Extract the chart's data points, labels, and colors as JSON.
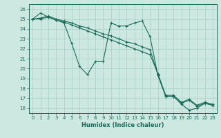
{
  "xlabel": "Humidex (Indice chaleur)",
  "background_color": "#cce8e0",
  "grid_color": "#aad4cc",
  "line_color": "#1a6b5a",
  "xlim": [
    -0.5,
    23.5
  ],
  "ylim": [
    15.5,
    26.5
  ],
  "xticks": [
    0,
    1,
    2,
    3,
    4,
    5,
    6,
    7,
    8,
    9,
    10,
    11,
    12,
    13,
    14,
    15,
    16,
    17,
    18,
    19,
    20,
    21,
    22,
    23
  ],
  "yticks": [
    16,
    17,
    18,
    19,
    20,
    21,
    22,
    23,
    24,
    25,
    26
  ],
  "series": [
    {
      "x": [
        0,
        1,
        2,
        3,
        4,
        5,
        6,
        7,
        8,
        9,
        10,
        11,
        12,
        13,
        14,
        15,
        16,
        17,
        18,
        19,
        20,
        21,
        22,
        23
      ],
      "y": [
        25,
        25.6,
        25.2,
        24.9,
        24.6,
        22.5,
        20.2,
        19.4,
        20.7,
        20.7,
        24.6,
        24.3,
        24.3,
        24.6,
        24.8,
        23.2,
        19.3,
        17.2,
        17.2,
        16.4,
        15.8,
        16.0,
        16.5,
        16.3
      ]
    },
    {
      "x": [
        0,
        1,
        2,
        3,
        4,
        5,
        6,
        7,
        8,
        9,
        10,
        11,
        12,
        13,
        14,
        15,
        16,
        17,
        18,
        19,
        20,
        21,
        22,
        23
      ],
      "y": [
        25,
        25.1,
        25.3,
        25.0,
        24.8,
        24.6,
        24.3,
        24.1,
        23.8,
        23.5,
        23.3,
        23.0,
        22.7,
        22.5,
        22.2,
        21.9,
        19.4,
        17.2,
        17.2,
        16.5,
        16.8,
        16.2,
        16.5,
        16.3
      ]
    },
    {
      "x": [
        0,
        1,
        2,
        3,
        4,
        5,
        6,
        7,
        8,
        9,
        10,
        11,
        12,
        13,
        14,
        15,
        16,
        17,
        18,
        19,
        20,
        21,
        22,
        23
      ],
      "y": [
        25,
        25.0,
        25.2,
        24.9,
        24.7,
        24.4,
        24.1,
        23.8,
        23.5,
        23.2,
        22.9,
        22.6,
        22.3,
        22.0,
        21.7,
        21.4,
        19.5,
        17.3,
        17.3,
        16.6,
        16.9,
        16.3,
        16.6,
        16.4
      ]
    }
  ]
}
